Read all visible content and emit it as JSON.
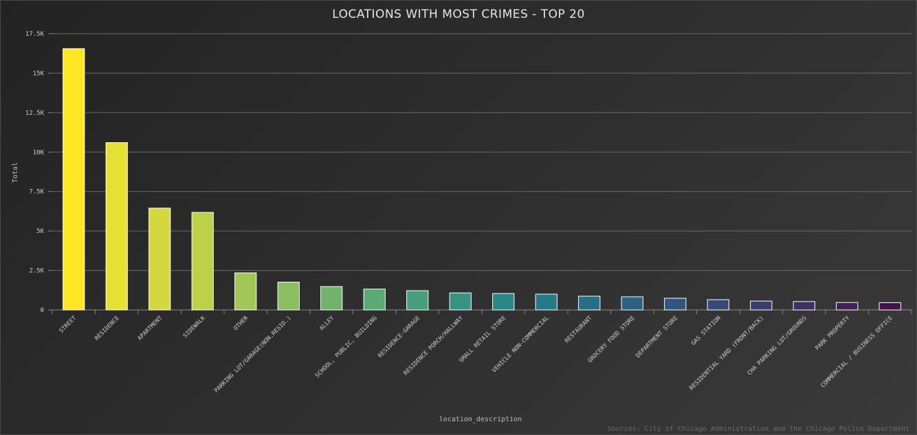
{
  "chart_data": {
    "type": "bar",
    "title": "LOCATIONS WITH MOST CRIMES - TOP 20",
    "xlabel": "location_description",
    "ylabel": "Total",
    "ylim": [
      0,
      17500
    ],
    "yticks": [
      0,
      2500,
      5000,
      7500,
      10000,
      12500,
      15000,
      17500
    ],
    "ytick_labels": [
      "0",
      "2.5K",
      "5K",
      "7.5K",
      "10K",
      "12.5K",
      "15K",
      "17.5K"
    ],
    "grid": true,
    "legend": "none",
    "categories": [
      "STREET",
      "RESIDENCE",
      "APARTMENT",
      "SIDEWALK",
      "OTHER",
      "PARKING LOT/GARAGE(NON.RESID.)",
      "ALLEY",
      "SCHOOL, PUBLIC, BUILDING",
      "RESIDENCE-GARAGE",
      "RESIDENCE PORCH/HALLWAY",
      "SMALL RETAIL STORE",
      "VEHICLE NON-COMMERCIAL",
      "RESTAURANT",
      "GROCERY FOOD STORE",
      "DEPARTMENT STORE",
      "GAS STATION",
      "RESIDENTIAL YARD (FRONT/BACK)",
      "CHA PARKING LOT/GROUNDS",
      "PARK PROPERTY",
      "COMMERCIAL / BUSINESS OFFICE"
    ],
    "values": [
      16550,
      10600,
      6450,
      6180,
      2350,
      1760,
      1480,
      1320,
      1220,
      1080,
      1040,
      1000,
      870,
      830,
      740,
      650,
      560,
      530,
      470,
      460
    ],
    "colors": [
      "#fde725",
      "#e5e134",
      "#d3d840",
      "#bcd04a",
      "#a2c657",
      "#89be62",
      "#71b36b",
      "#5ba973",
      "#479e7b",
      "#369282",
      "#2b8686",
      "#267a87",
      "#276e85",
      "#2b6282",
      "#30567d",
      "#354a76",
      "#393d6d",
      "#3d3062",
      "#402356",
      "#44104f"
    ]
  },
  "source": "Sources: City of Chicago Administration and the Chicago Police Department"
}
